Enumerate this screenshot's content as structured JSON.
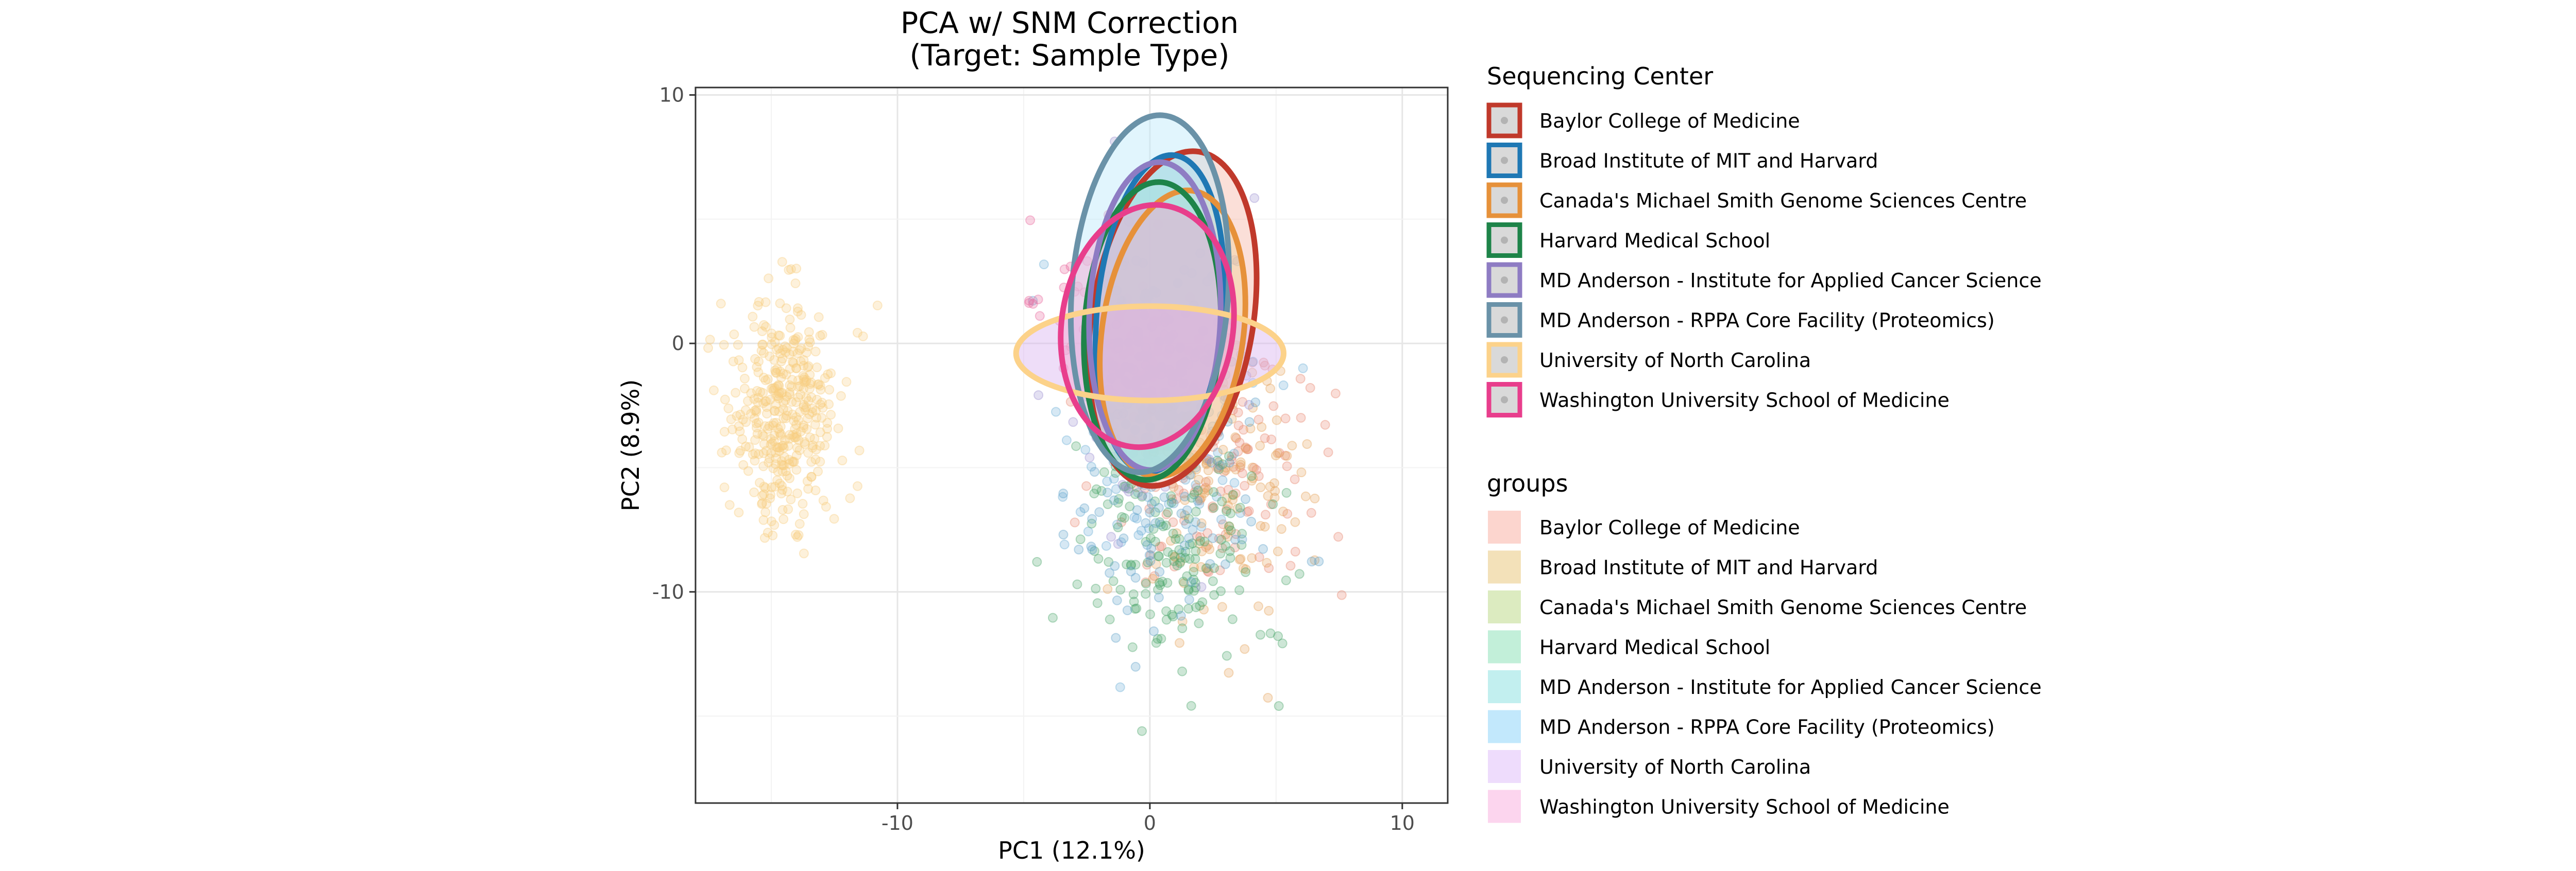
{
  "chart_data": {
    "type": "scatter",
    "title": [
      "PCA w/ SNM Correction",
      "(Target: Sample Type)"
    ],
    "xlabel": "PC1 (12.1%)",
    "ylabel": "PC2 (8.9%)",
    "xlim": [
      -18,
      11.8
    ],
    "ylim": [
      -18.5,
      10.3
    ],
    "x_ticks": [
      {
        "value": -10,
        "label": "-10"
      },
      {
        "value": 0,
        "label": "0"
      },
      {
        "value": 10,
        "label": "10"
      }
    ],
    "y_ticks": [
      {
        "value": 10,
        "label": "10"
      },
      {
        "value": 0,
        "label": "0"
      },
      {
        "value": -10,
        "label": "-10"
      }
    ],
    "grid": true,
    "point_opacity": 0.28,
    "legends": [
      {
        "title": "Sequencing Center",
        "key_style": "ellipse",
        "entries": [
          {
            "label": "Baylor College of Medicine",
            "color": "#c0392b",
            "fill": "#d9d9d9"
          },
          {
            "label": "Broad Institute of MIT and Harvard",
            "color": "#1f78b4",
            "fill": "#d9d9d9"
          },
          {
            "label": "Canada's Michael Smith Genome Sciences Centre",
            "color": "#e6913a",
            "fill": "#d9d9d9"
          },
          {
            "label": "Harvard Medical School",
            "color": "#1e8449",
            "fill": "#d9d9d9"
          },
          {
            "label": "MD Anderson - Institute for Applied Cancer Science",
            "color": "#8e7cc3",
            "fill": "#d9d9d9"
          },
          {
            "label": "MD Anderson - RPPA Core Facility (Proteomics)",
            "color": "#6a92a8",
            "fill": "#d9d9d9"
          },
          {
            "label": "University of North Carolina",
            "color": "#fcd28a",
            "fill": "#d9d9d9"
          },
          {
            "label": "Washington University School of Medicine",
            "color": "#e83e8c",
            "fill": "#d9d9d9"
          }
        ]
      },
      {
        "title": "groups",
        "key_style": "fill",
        "entries": [
          {
            "label": "Baylor College of Medicine",
            "color": "#fcd5ce"
          },
          {
            "label": "Broad Institute of MIT and Harvard",
            "color": "#f3e1b9"
          },
          {
            "label": "Canada's Michael Smith Genome Sciences Centre",
            "color": "#dcebc0"
          },
          {
            "label": "Harvard Medical School",
            "color": "#c2efd9"
          },
          {
            "label": "MD Anderson - Institute for Applied Cancer Science",
            "color": "#c2efef"
          },
          {
            "label": "MD Anderson - RPPA Core Facility (Proteomics)",
            "color": "#c2e8fc"
          },
          {
            "label": "University of North Carolina",
            "color": "#eedcfc"
          },
          {
            "label": "Washington University School of Medicine",
            "color": "#fcd5ee"
          }
        ]
      }
    ],
    "series": [
      {
        "name": "Baylor College of Medicine",
        "color": "#e8866e",
        "fill": "#f6b9a8",
        "count": 150,
        "center": [
          2.5,
          -5
        ],
        "spread": [
          2.8,
          3.6
        ],
        "ellipse": {
          "cx": 0.9,
          "cy": 1.0,
          "rx": 3.2,
          "ry": 6.8,
          "angle_deg": 9
        }
      },
      {
        "name": "Broad Institute of MIT and Harvard",
        "color": "#6aaed6",
        "fill": "#8fd3e6",
        "count": 130,
        "center": [
          0.5,
          -3
        ],
        "spread": [
          2.6,
          4.0
        ],
        "ellipse": {
          "cx": 0.4,
          "cy": 1.2,
          "rx": 2.5,
          "ry": 6.4,
          "angle_deg": 5
        }
      },
      {
        "name": "Canada's Michael Smith Genome Sciences Centre",
        "color": "#e6a35a",
        "fill": "#f2d39b",
        "count": 120,
        "center": [
          2.8,
          -6
        ],
        "spread": [
          2.4,
          3.2
        ],
        "ellipse": {
          "cx": 0.9,
          "cy": 0.4,
          "rx": 2.8,
          "ry": 5.8,
          "angle_deg": 8
        }
      },
      {
        "name": "Harvard Medical School",
        "color": "#4aa56a",
        "fill": "#7fd1a8",
        "count": 170,
        "center": [
          1.0,
          -8.5
        ],
        "spread": [
          2.4,
          3.6
        ],
        "ellipse": {
          "cx": 0.1,
          "cy": 0.5,
          "rx": 2.7,
          "ry": 6.0,
          "angle_deg": 3
        }
      },
      {
        "name": "MD Anderson - Institute for Applied Cancer Science",
        "color": "#9b8fcf",
        "fill": "#9fe0e0",
        "count": 90,
        "center": [
          0.2,
          -1
        ],
        "spread": [
          2.2,
          3.6
        ],
        "ellipse": {
          "cx": 0.2,
          "cy": 1.1,
          "rx": 2.6,
          "ry": 6.2,
          "angle_deg": 2
        }
      },
      {
        "name": "MD Anderson - RPPA Core Facility (Proteomics)",
        "color": "#5fa0c8",
        "fill": "#bde8fb",
        "count": 100,
        "center": [
          0.8,
          -5.5
        ],
        "spread": [
          2.6,
          4.0
        ],
        "ellipse": {
          "cx": 0.0,
          "cy": 2.0,
          "rx": 3.1,
          "ry": 7.2,
          "angle_deg": 4
        }
      },
      {
        "name": "University of North Carolina",
        "color": "#f8cc7e",
        "fill": "#d9b3ef",
        "count": 380,
        "center": [
          -14.5,
          -3
        ],
        "spread": [
          1.3,
          3.0
        ],
        "ellipse": {
          "cx": 0.0,
          "cy": -0.4,
          "rx": 5.3,
          "ry": 1.9,
          "angle_deg": 0
        }
      },
      {
        "name": "Washington University School of Medicine",
        "color": "#e8659a",
        "fill": "#f3a5cf",
        "count": 80,
        "center": [
          -1.5,
          0.5
        ],
        "spread": [
          2.2,
          3.0
        ],
        "ellipse": {
          "cx": -0.1,
          "cy": 0.7,
          "rx": 3.4,
          "ry": 4.9,
          "angle_deg": 8
        }
      }
    ]
  }
}
